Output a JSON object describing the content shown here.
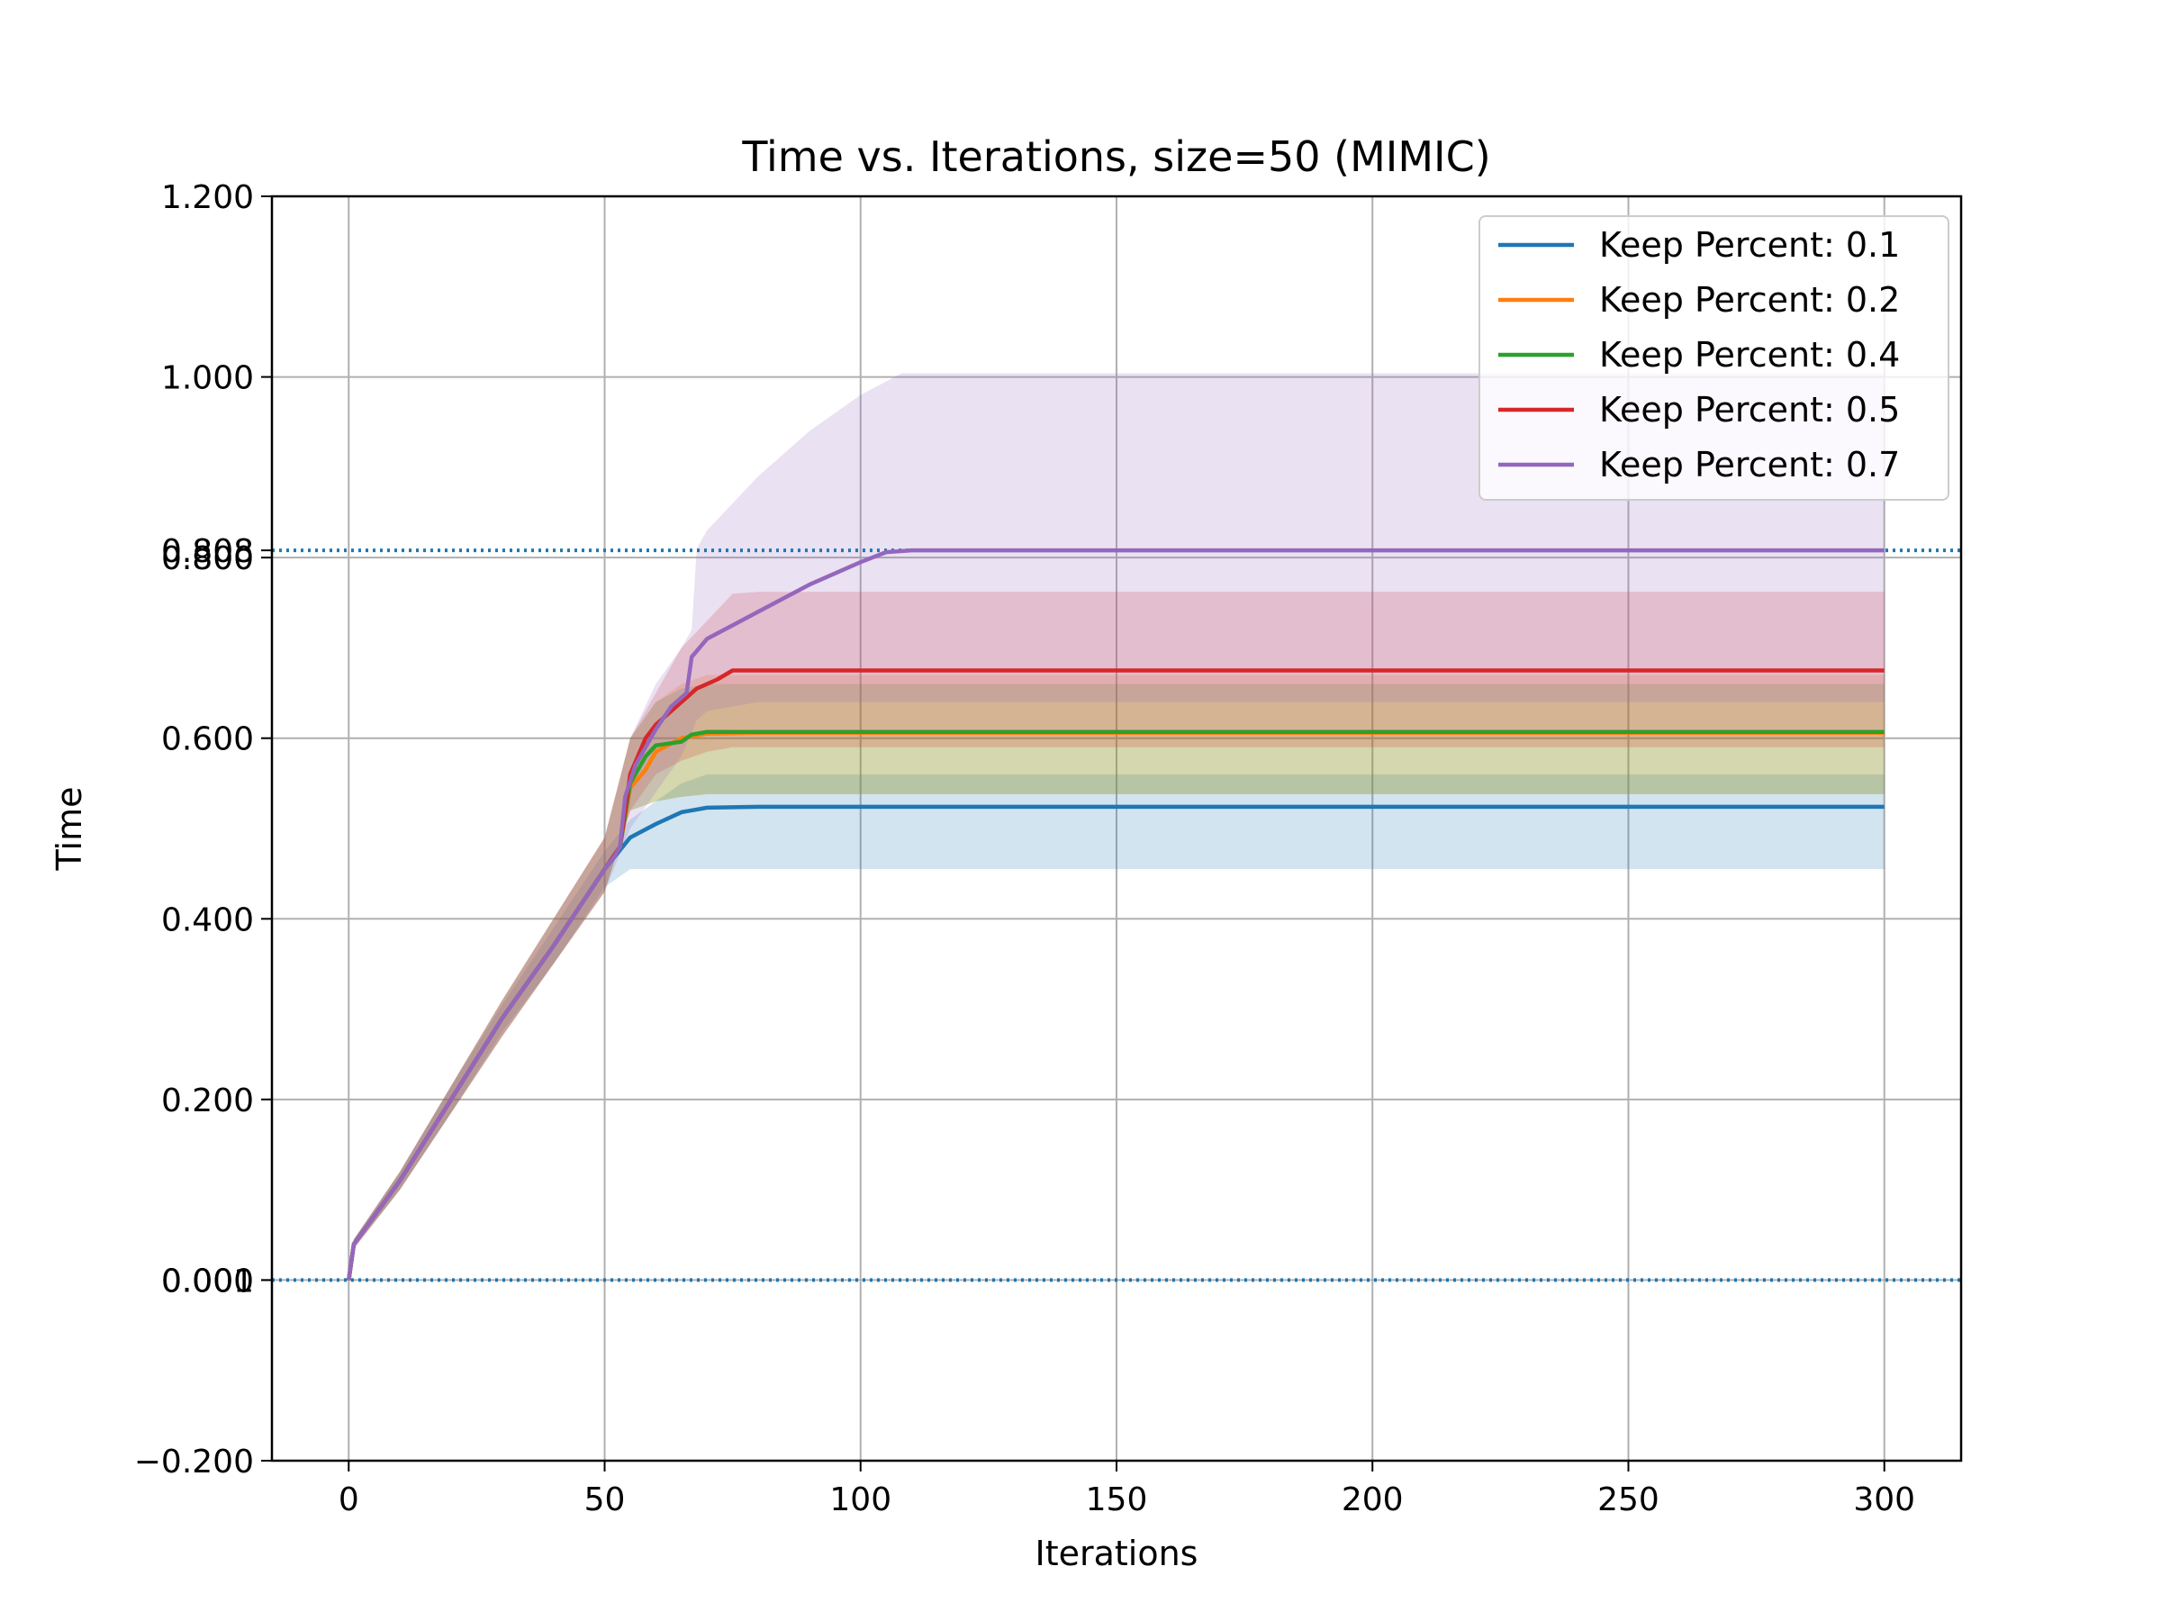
{
  "chart_data": {
    "type": "line",
    "title": "Time vs. Iterations, size=50 (MIMIC)",
    "xlabel": "Iterations",
    "ylabel": "Time",
    "xlim": [
      -15,
      315
    ],
    "ylim": [
      -0.2,
      1.2
    ],
    "xticks": [
      0,
      50,
      100,
      150,
      200,
      250,
      300
    ],
    "xtick_labels": [
      "0",
      "50",
      "100",
      "150",
      "200",
      "250",
      "300"
    ],
    "yticks": [
      -0.2,
      0.0,
      0.2,
      0.4,
      0.6,
      0.8,
      1.0,
      1.2
    ],
    "ytick_labels": [
      "−0.200",
      "0.000",
      "0.200",
      "0.400",
      "0.600",
      "0.800",
      "1.000",
      "1.200"
    ],
    "extra_ytick_labels": [
      {
        "value": 0.0,
        "label": "0.001"
      },
      {
        "value": 0.808,
        "label": "0.808"
      }
    ],
    "hlines": [
      {
        "y": 0.0,
        "style": "dotted",
        "color": "#1f77b4"
      },
      {
        "y": 0.808,
        "style": "dotted",
        "color": "#1f77b4"
      }
    ],
    "grid": true,
    "legend_position": "top-right",
    "series": [
      {
        "name": "Keep Percent: 0.1",
        "color": "#1f77b4",
        "points": [
          [
            0,
            0
          ],
          [
            1,
            0.04
          ],
          [
            10,
            0.11
          ],
          [
            20,
            0.2
          ],
          [
            30,
            0.29
          ],
          [
            40,
            0.37
          ],
          [
            50,
            0.455
          ],
          [
            55,
            0.49
          ],
          [
            60,
            0.505
          ],
          [
            65,
            0.518
          ],
          [
            70,
            0.523
          ],
          [
            80,
            0.524
          ],
          [
            300,
            0.524
          ]
        ],
        "band": {
          "upper": [
            [
              0,
              0
            ],
            [
              1,
              0.045
            ],
            [
              10,
              0.12
            ],
            [
              20,
              0.215
            ],
            [
              30,
              0.305
            ],
            [
              40,
              0.39
            ],
            [
              50,
              0.475
            ],
            [
              55,
              0.51
            ],
            [
              60,
              0.53
            ],
            [
              65,
              0.55
            ],
            [
              70,
              0.56
            ],
            [
              80,
              0.56
            ],
            [
              300,
              0.56
            ]
          ],
          "lower": [
            [
              0,
              0
            ],
            [
              1,
              0.035
            ],
            [
              10,
              0.1
            ],
            [
              20,
              0.185
            ],
            [
              30,
              0.275
            ],
            [
              40,
              0.35
            ],
            [
              50,
              0.435
            ],
            [
              55,
              0.455
            ],
            [
              60,
              0.455
            ],
            [
              65,
              0.455
            ],
            [
              70,
              0.455
            ],
            [
              80,
              0.455
            ],
            [
              300,
              0.455
            ]
          ]
        }
      },
      {
        "name": "Keep Percent: 0.2",
        "color": "#ff7f0e",
        "points": [
          [
            0,
            0
          ],
          [
            1,
            0.04
          ],
          [
            10,
            0.11
          ],
          [
            20,
            0.2
          ],
          [
            30,
            0.29
          ],
          [
            40,
            0.37
          ],
          [
            50,
            0.455
          ],
          [
            53,
            0.48
          ],
          [
            55,
            0.545
          ],
          [
            58,
            0.565
          ],
          [
            60,
            0.585
          ],
          [
            65,
            0.6
          ],
          [
            70,
            0.605
          ],
          [
            80,
            0.606
          ],
          [
            300,
            0.606
          ]
        ],
        "band": {
          "upper": [
            [
              0,
              0
            ],
            [
              1,
              0.045
            ],
            [
              10,
              0.12
            ],
            [
              20,
              0.215
            ],
            [
              30,
              0.31
            ],
            [
              40,
              0.4
            ],
            [
              50,
              0.49
            ],
            [
              55,
              0.6
            ],
            [
              60,
              0.64
            ],
            [
              65,
              0.66
            ],
            [
              70,
              0.67
            ],
            [
              80,
              0.67
            ],
            [
              300,
              0.67
            ]
          ],
          "lower": [
            [
              0,
              0
            ],
            [
              1,
              0.035
            ],
            [
              10,
              0.1
            ],
            [
              20,
              0.185
            ],
            [
              30,
              0.27
            ],
            [
              40,
              0.35
            ],
            [
              50,
              0.43
            ],
            [
              55,
              0.52
            ],
            [
              60,
              0.53
            ],
            [
              65,
              0.535
            ],
            [
              70,
              0.538
            ],
            [
              80,
              0.538
            ],
            [
              300,
              0.538
            ]
          ]
        }
      },
      {
        "name": "Keep Percent: 0.4",
        "color": "#2ca02c",
        "points": [
          [
            0,
            0
          ],
          [
            1,
            0.04
          ],
          [
            10,
            0.11
          ],
          [
            20,
            0.2
          ],
          [
            30,
            0.29
          ],
          [
            40,
            0.37
          ],
          [
            50,
            0.455
          ],
          [
            53,
            0.48
          ],
          [
            55,
            0.55
          ],
          [
            58,
            0.58
          ],
          [
            60,
            0.592
          ],
          [
            65,
            0.596
          ],
          [
            67,
            0.604
          ],
          [
            70,
            0.607
          ],
          [
            80,
            0.607
          ],
          [
            300,
            0.607
          ]
        ],
        "band": {
          "upper": [
            [
              0,
              0
            ],
            [
              1,
              0.045
            ],
            [
              10,
              0.12
            ],
            [
              20,
              0.215
            ],
            [
              30,
              0.31
            ],
            [
              40,
              0.4
            ],
            [
              50,
              0.49
            ],
            [
              55,
              0.6
            ],
            [
              60,
              0.64
            ],
            [
              65,
              0.655
            ],
            [
              70,
              0.66
            ],
            [
              80,
              0.66
            ],
            [
              300,
              0.66
            ]
          ],
          "lower": [
            [
              0,
              0
            ],
            [
              1,
              0.035
            ],
            [
              10,
              0.1
            ],
            [
              20,
              0.185
            ],
            [
              30,
              0.27
            ],
            [
              40,
              0.35
            ],
            [
              50,
              0.43
            ],
            [
              55,
              0.52
            ],
            [
              60,
              0.53
            ],
            [
              65,
              0.535
            ],
            [
              70,
              0.538
            ],
            [
              80,
              0.538
            ],
            [
              300,
              0.538
            ]
          ]
        }
      },
      {
        "name": "Keep Percent: 0.5",
        "color": "#d62728",
        "points": [
          [
            0,
            0
          ],
          [
            1,
            0.04
          ],
          [
            10,
            0.11
          ],
          [
            20,
            0.2
          ],
          [
            30,
            0.29
          ],
          [
            40,
            0.37
          ],
          [
            50,
            0.455
          ],
          [
            53,
            0.48
          ],
          [
            55,
            0.56
          ],
          [
            58,
            0.6
          ],
          [
            60,
            0.615
          ],
          [
            65,
            0.64
          ],
          [
            68,
            0.655
          ],
          [
            72,
            0.665
          ],
          [
            75,
            0.675
          ],
          [
            80,
            0.675
          ],
          [
            300,
            0.675
          ]
        ],
        "band": {
          "upper": [
            [
              0,
              0
            ],
            [
              1,
              0.045
            ],
            [
              10,
              0.12
            ],
            [
              20,
              0.215
            ],
            [
              30,
              0.31
            ],
            [
              40,
              0.4
            ],
            [
              50,
              0.49
            ],
            [
              55,
              0.6
            ],
            [
              60,
              0.65
            ],
            [
              65,
              0.7
            ],
            [
              70,
              0.73
            ],
            [
              75,
              0.76
            ],
            [
              80,
              0.762
            ],
            [
              300,
              0.762
            ]
          ],
          "lower": [
            [
              0,
              0
            ],
            [
              1,
              0.035
            ],
            [
              10,
              0.1
            ],
            [
              20,
              0.185
            ],
            [
              30,
              0.27
            ],
            [
              40,
              0.35
            ],
            [
              50,
              0.43
            ],
            [
              55,
              0.52
            ],
            [
              60,
              0.56
            ],
            [
              65,
              0.575
            ],
            [
              70,
              0.585
            ],
            [
              75,
              0.59
            ],
            [
              80,
              0.59
            ],
            [
              300,
              0.59
            ]
          ]
        }
      },
      {
        "name": "Keep Percent: 0.7",
        "color": "#9467bd",
        "points": [
          [
            0,
            0
          ],
          [
            1,
            0.04
          ],
          [
            10,
            0.11
          ],
          [
            20,
            0.2
          ],
          [
            30,
            0.29
          ],
          [
            40,
            0.37
          ],
          [
            50,
            0.455
          ],
          [
            52,
            0.47
          ],
          [
            53,
            0.48
          ],
          [
            54,
            0.535
          ],
          [
            56,
            0.57
          ],
          [
            58,
            0.59
          ],
          [
            60,
            0.61
          ],
          [
            63,
            0.635
          ],
          [
            66,
            0.65
          ],
          [
            67,
            0.69
          ],
          [
            70,
            0.71
          ],
          [
            75,
            0.725
          ],
          [
            80,
            0.74
          ],
          [
            90,
            0.77
          ],
          [
            100,
            0.795
          ],
          [
            105,
            0.806
          ],
          [
            110,
            0.808
          ],
          [
            300,
            0.808
          ]
        ],
        "band": {
          "upper": [
            [
              0,
              0
            ],
            [
              1,
              0.045
            ],
            [
              10,
              0.12
            ],
            [
              20,
              0.215
            ],
            [
              30,
              0.31
            ],
            [
              40,
              0.4
            ],
            [
              50,
              0.49
            ],
            [
              55,
              0.6
            ],
            [
              60,
              0.66
            ],
            [
              65,
              0.7
            ],
            [
              67,
              0.72
            ],
            [
              68,
              0.81
            ],
            [
              70,
              0.83
            ],
            [
              80,
              0.89
            ],
            [
              90,
              0.94
            ],
            [
              100,
              0.98
            ],
            [
              108,
              1.004
            ],
            [
              300,
              1.004
            ]
          ],
          "lower": [
            [
              0,
              0
            ],
            [
              1,
              0.035
            ],
            [
              10,
              0.1
            ],
            [
              20,
              0.185
            ],
            [
              30,
              0.27
            ],
            [
              40,
              0.35
            ],
            [
              50,
              0.43
            ],
            [
              55,
              0.5
            ],
            [
              60,
              0.54
            ],
            [
              65,
              0.58
            ],
            [
              68,
              0.62
            ],
            [
              70,
              0.63
            ],
            [
              80,
              0.64
            ],
            [
              90,
              0.64
            ],
            [
              100,
              0.64
            ],
            [
              300,
              0.64
            ]
          ]
        }
      }
    ]
  }
}
